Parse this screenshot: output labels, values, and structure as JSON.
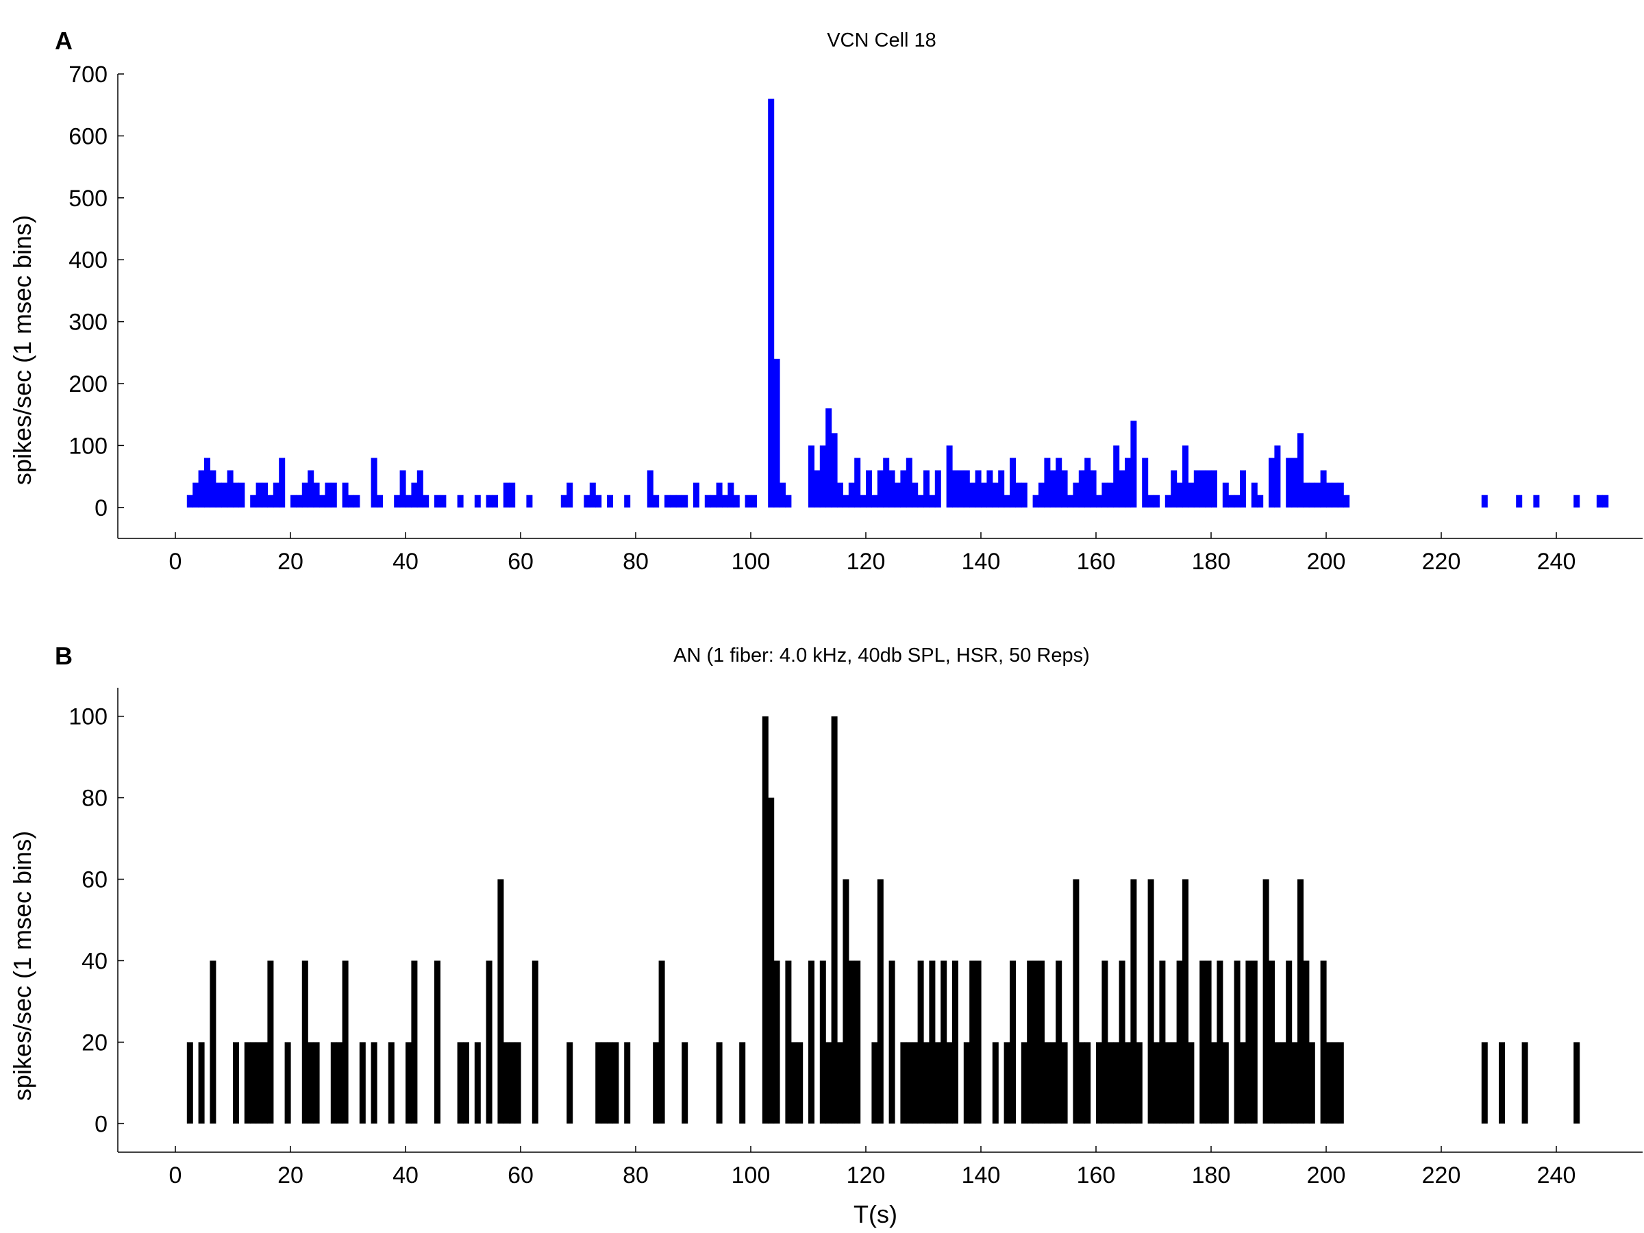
{
  "chart_data": [
    {
      "type": "bar",
      "panel_label": "A",
      "title": "VCN Cell 18",
      "xlabel": "",
      "ylabel": "spikes/sec (1 msec bins)",
      "xlim": [
        -10,
        255
      ],
      "ylim": [
        -50,
        700
      ],
      "xticks": [
        0,
        20,
        40,
        60,
        80,
        100,
        120,
        140,
        160,
        180,
        200,
        220,
        240
      ],
      "yticks": [
        0,
        100,
        200,
        300,
        400,
        500,
        600,
        700
      ],
      "bin_width": 1,
      "color": "#0000ff",
      "grid": false,
      "bins": [
        [
          2,
          20
        ],
        [
          3,
          40
        ],
        [
          4,
          60
        ],
        [
          5,
          80
        ],
        [
          6,
          60
        ],
        [
          7,
          40
        ],
        [
          8,
          40
        ],
        [
          9,
          60
        ],
        [
          10,
          40
        ],
        [
          11,
          40
        ],
        [
          13,
          20
        ],
        [
          14,
          40
        ],
        [
          15,
          40
        ],
        [
          16,
          20
        ],
        [
          17,
          40
        ],
        [
          18,
          80
        ],
        [
          20,
          20
        ],
        [
          21,
          20
        ],
        [
          22,
          40
        ],
        [
          23,
          60
        ],
        [
          24,
          40
        ],
        [
          25,
          20
        ],
        [
          26,
          40
        ],
        [
          27,
          40
        ],
        [
          29,
          40
        ],
        [
          30,
          20
        ],
        [
          31,
          20
        ],
        [
          34,
          80
        ],
        [
          35,
          20
        ],
        [
          38,
          20
        ],
        [
          39,
          60
        ],
        [
          40,
          20
        ],
        [
          41,
          40
        ],
        [
          42,
          60
        ],
        [
          43,
          20
        ],
        [
          45,
          20
        ],
        [
          46,
          20
        ],
        [
          49,
          20
        ],
        [
          52,
          20
        ],
        [
          54,
          20
        ],
        [
          55,
          20
        ],
        [
          57,
          40
        ],
        [
          58,
          40
        ],
        [
          61,
          20
        ],
        [
          67,
          20
        ],
        [
          68,
          40
        ],
        [
          71,
          20
        ],
        [
          72,
          40
        ],
        [
          73,
          20
        ],
        [
          75,
          20
        ],
        [
          78,
          20
        ],
        [
          82,
          60
        ],
        [
          83,
          20
        ],
        [
          85,
          20
        ],
        [
          86,
          20
        ],
        [
          87,
          20
        ],
        [
          88,
          20
        ],
        [
          90,
          40
        ],
        [
          92,
          20
        ],
        [
          93,
          20
        ],
        [
          94,
          40
        ],
        [
          95,
          20
        ],
        [
          96,
          40
        ],
        [
          97,
          20
        ],
        [
          99,
          20
        ],
        [
          100,
          20
        ],
        [
          103,
          660
        ],
        [
          104,
          240
        ],
        [
          105,
          40
        ],
        [
          106,
          20
        ],
        [
          110,
          100
        ],
        [
          111,
          60
        ],
        [
          112,
          100
        ],
        [
          113,
          160
        ],
        [
          114,
          120
        ],
        [
          115,
          40
        ],
        [
          116,
          20
        ],
        [
          117,
          40
        ],
        [
          118,
          80
        ],
        [
          119,
          20
        ],
        [
          120,
          60
        ],
        [
          121,
          20
        ],
        [
          122,
          60
        ],
        [
          123,
          80
        ],
        [
          124,
          60
        ],
        [
          125,
          40
        ],
        [
          126,
          60
        ],
        [
          127,
          80
        ],
        [
          128,
          40
        ],
        [
          129,
          20
        ],
        [
          130,
          60
        ],
        [
          131,
          20
        ],
        [
          132,
          60
        ],
        [
          134,
          100
        ],
        [
          135,
          60
        ],
        [
          136,
          60
        ],
        [
          137,
          60
        ],
        [
          138,
          40
        ],
        [
          139,
          60
        ],
        [
          140,
          40
        ],
        [
          141,
          60
        ],
        [
          142,
          40
        ],
        [
          143,
          60
        ],
        [
          144,
          20
        ],
        [
          145,
          80
        ],
        [
          146,
          40
        ],
        [
          147,
          40
        ],
        [
          149,
          20
        ],
        [
          150,
          40
        ],
        [
          151,
          80
        ],
        [
          152,
          60
        ],
        [
          153,
          80
        ],
        [
          154,
          60
        ],
        [
          155,
          20
        ],
        [
          156,
          40
        ],
        [
          157,
          60
        ],
        [
          158,
          80
        ],
        [
          159,
          60
        ],
        [
          160,
          20
        ],
        [
          161,
          40
        ],
        [
          162,
          40
        ],
        [
          163,
          100
        ],
        [
          164,
          60
        ],
        [
          165,
          80
        ],
        [
          166,
          140
        ],
        [
          168,
          80
        ],
        [
          169,
          20
        ],
        [
          170,
          20
        ],
        [
          172,
          20
        ],
        [
          173,
          60
        ],
        [
          174,
          40
        ],
        [
          175,
          100
        ],
        [
          176,
          40
        ],
        [
          177,
          60
        ],
        [
          178,
          60
        ],
        [
          179,
          60
        ],
        [
          180,
          60
        ],
        [
          182,
          40
        ],
        [
          183,
          20
        ],
        [
          184,
          20
        ],
        [
          185,
          60
        ],
        [
          187,
          40
        ],
        [
          188,
          20
        ],
        [
          190,
          80
        ],
        [
          191,
          100
        ],
        [
          193,
          80
        ],
        [
          194,
          80
        ],
        [
          195,
          120
        ],
        [
          196,
          40
        ],
        [
          197,
          40
        ],
        [
          198,
          40
        ],
        [
          199,
          60
        ],
        [
          200,
          40
        ],
        [
          201,
          40
        ],
        [
          202,
          40
        ],
        [
          203,
          20
        ],
        [
          227,
          20
        ],
        [
          233,
          20
        ],
        [
          236,
          20
        ],
        [
          243,
          20
        ],
        [
          247,
          20
        ],
        [
          248,
          20
        ]
      ]
    },
    {
      "type": "bar",
      "panel_label": "B",
      "title": "AN (1 fiber: 4.0 kHz, 40db SPL, HSR, 50 Reps)",
      "xlabel": "T(s)",
      "ylabel": "spikes/sec (1 msec bins)",
      "xlim": [
        -10,
        255
      ],
      "ylim": [
        -7,
        107
      ],
      "xticks": [
        0,
        20,
        40,
        60,
        80,
        100,
        120,
        140,
        160,
        180,
        200,
        220,
        240
      ],
      "yticks": [
        0,
        20,
        40,
        60,
        80,
        100
      ],
      "bin_width": 1,
      "color": "#000000",
      "grid": false,
      "bins": [
        [
          2,
          20
        ],
        [
          4,
          20
        ],
        [
          6,
          40
        ],
        [
          10,
          20
        ],
        [
          12,
          20
        ],
        [
          13,
          20
        ],
        [
          14,
          20
        ],
        [
          15,
          20
        ],
        [
          16,
          40
        ],
        [
          19,
          20
        ],
        [
          22,
          40
        ],
        [
          23,
          20
        ],
        [
          24,
          20
        ],
        [
          27,
          20
        ],
        [
          28,
          20
        ],
        [
          29,
          40
        ],
        [
          32,
          20
        ],
        [
          34,
          20
        ],
        [
          37,
          20
        ],
        [
          40,
          20
        ],
        [
          41,
          40
        ],
        [
          45,
          40
        ],
        [
          49,
          20
        ],
        [
          50,
          20
        ],
        [
          52,
          20
        ],
        [
          54,
          40
        ],
        [
          56,
          60
        ],
        [
          57,
          20
        ],
        [
          58,
          20
        ],
        [
          59,
          20
        ],
        [
          62,
          40
        ],
        [
          68,
          20
        ],
        [
          73,
          20
        ],
        [
          74,
          20
        ],
        [
          75,
          20
        ],
        [
          76,
          20
        ],
        [
          78,
          20
        ],
        [
          83,
          20
        ],
        [
          84,
          40
        ],
        [
          88,
          20
        ],
        [
          94,
          20
        ],
        [
          98,
          20
        ],
        [
          102,
          100
        ],
        [
          103,
          80
        ],
        [
          104,
          40
        ],
        [
          106,
          40
        ],
        [
          107,
          20
        ],
        [
          108,
          20
        ],
        [
          110,
          40
        ],
        [
          112,
          40
        ],
        [
          113,
          20
        ],
        [
          114,
          100
        ],
        [
          115,
          20
        ],
        [
          116,
          60
        ],
        [
          117,
          40
        ],
        [
          118,
          40
        ],
        [
          121,
          20
        ],
        [
          122,
          60
        ],
        [
          124,
          40
        ],
        [
          126,
          20
        ],
        [
          127,
          20
        ],
        [
          128,
          20
        ],
        [
          129,
          40
        ],
        [
          130,
          20
        ],
        [
          131,
          40
        ],
        [
          132,
          20
        ],
        [
          133,
          40
        ],
        [
          134,
          20
        ],
        [
          135,
          40
        ],
        [
          137,
          20
        ],
        [
          138,
          40
        ],
        [
          139,
          40
        ],
        [
          142,
          20
        ],
        [
          144,
          20
        ],
        [
          145,
          40
        ],
        [
          147,
          20
        ],
        [
          148,
          40
        ],
        [
          149,
          40
        ],
        [
          150,
          40
        ],
        [
          151,
          20
        ],
        [
          152,
          20
        ],
        [
          153,
          40
        ],
        [
          154,
          20
        ],
        [
          156,
          60
        ],
        [
          157,
          20
        ],
        [
          158,
          20
        ],
        [
          160,
          20
        ],
        [
          161,
          40
        ],
        [
          162,
          20
        ],
        [
          163,
          20
        ],
        [
          164,
          40
        ],
        [
          165,
          20
        ],
        [
          166,
          60
        ],
        [
          167,
          20
        ],
        [
          169,
          60
        ],
        [
          170,
          20
        ],
        [
          171,
          40
        ],
        [
          172,
          20
        ],
        [
          173,
          20
        ],
        [
          174,
          40
        ],
        [
          175,
          60
        ],
        [
          176,
          20
        ],
        [
          178,
          40
        ],
        [
          179,
          40
        ],
        [
          180,
          20
        ],
        [
          181,
          40
        ],
        [
          182,
          20
        ],
        [
          184,
          40
        ],
        [
          185,
          20
        ],
        [
          186,
          40
        ],
        [
          187,
          40
        ],
        [
          189,
          60
        ],
        [
          190,
          40
        ],
        [
          191,
          20
        ],
        [
          192,
          20
        ],
        [
          193,
          40
        ],
        [
          194,
          20
        ],
        [
          195,
          60
        ],
        [
          196,
          40
        ],
        [
          197,
          20
        ],
        [
          199,
          40
        ],
        [
          200,
          20
        ],
        [
          201,
          20
        ],
        [
          202,
          20
        ],
        [
          227,
          20
        ],
        [
          230,
          20
        ],
        [
          234,
          20
        ],
        [
          243,
          20
        ]
      ]
    }
  ]
}
